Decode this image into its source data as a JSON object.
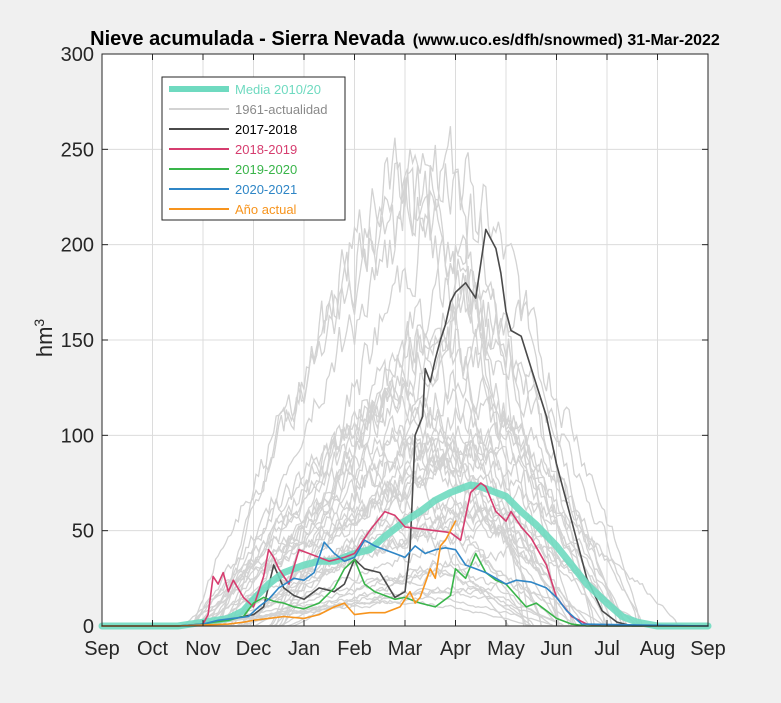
{
  "chart_data": {
    "type": "line",
    "title": "Nieve acumulada - Sierra Nevada",
    "subtitle": "(www.uco.es/dfh/snowmed) 31-Mar-2022",
    "ylabel_base": "hm",
    "ylabel_sup": "3",
    "xlabel": "",
    "ylim": [
      0,
      300
    ],
    "yticks": [
      0,
      50,
      100,
      150,
      200,
      250,
      300
    ],
    "xlim": [
      0,
      12
    ],
    "xticks": [
      "Sep",
      "Oct",
      "Nov",
      "Dec",
      "Jan",
      "Feb",
      "Mar",
      "Apr",
      "May",
      "Jun",
      "Jul",
      "Aug",
      "Sep"
    ],
    "x_unit": "months since 1 Sep",
    "grid": true,
    "legend_position": "top-left",
    "series": [
      {
        "name": "Media 2010/20",
        "color": "#6fdac0",
        "style": "thick",
        "x": [
          0,
          1.5,
          2.0,
          2.5,
          2.8,
          3.0,
          3.3,
          3.6,
          4.0,
          4.3,
          4.6,
          5.0,
          5.3,
          5.6,
          6.0,
          6.3,
          6.6,
          6.9,
          7.1,
          7.3,
          7.5,
          7.7,
          8.0,
          8.3,
          8.6,
          9.0,
          9.3,
          9.6,
          10.0,
          10.3,
          10.6,
          11.0,
          12.0
        ],
        "values": [
          0,
          0,
          2,
          4,
          8,
          14,
          22,
          28,
          32,
          34,
          34,
          38,
          40,
          47,
          55,
          60,
          66,
          70,
          72,
          74,
          73,
          71,
          68,
          60,
          53,
          42,
          32,
          22,
          12,
          5,
          2,
          0,
          0
        ]
      },
      {
        "name": "1961-actualidad",
        "color": "#d3d3d3",
        "style": "background",
        "x": [
          0,
          12
        ],
        "values": [
          0,
          0
        ]
      },
      {
        "name": "2017-2018",
        "color": "#4a4a4a",
        "x": [
          0,
          1.5,
          2.0,
          2.3,
          2.8,
          3.0,
          3.2,
          3.4,
          3.6,
          3.8,
          4.0,
          4.3,
          4.6,
          4.8,
          5.0,
          5.2,
          5.5,
          5.8,
          6.0,
          6.1,
          6.2,
          6.35,
          6.4,
          6.5,
          6.6,
          6.7,
          6.8,
          6.9,
          7.0,
          7.2,
          7.4,
          7.6,
          7.8,
          7.9,
          8.0,
          8.1,
          8.3,
          8.5,
          8.8,
          9.0,
          9.3,
          9.6,
          9.9,
          10.2,
          10.5,
          10.8,
          11.0,
          12.0
        ],
        "values": [
          0,
          0,
          1,
          3,
          5,
          6,
          10,
          32,
          20,
          16,
          14,
          20,
          18,
          22,
          35,
          30,
          28,
          15,
          18,
          40,
          100,
          110,
          135,
          128,
          140,
          150,
          158,
          170,
          175,
          180,
          172,
          208,
          198,
          185,
          165,
          155,
          152,
          135,
          110,
          85,
          55,
          25,
          8,
          2,
          0,
          0,
          0,
          0
        ]
      },
      {
        "name": "2018-2019",
        "color": "#d63d6f",
        "x": [
          0,
          1.5,
          2.0,
          2.1,
          2.2,
          2.3,
          2.4,
          2.5,
          2.6,
          2.8,
          3.0,
          3.2,
          3.3,
          3.4,
          3.5,
          3.7,
          3.9,
          4.1,
          4.3,
          4.5,
          4.8,
          5.0,
          5.3,
          5.6,
          5.8,
          6.0,
          6.3,
          6.6,
          6.9,
          7.1,
          7.3,
          7.5,
          7.6,
          7.8,
          8.0,
          8.1,
          8.3,
          8.5,
          8.8,
          9.0,
          9.3,
          9.6,
          9.9,
          10.2,
          12.0
        ],
        "values": [
          0,
          0,
          1,
          6,
          26,
          22,
          28,
          18,
          24,
          15,
          10,
          26,
          40,
          36,
          30,
          22,
          40,
          38,
          36,
          34,
          36,
          38,
          50,
          60,
          58,
          52,
          51,
          50,
          49,
          45,
          70,
          75,
          73,
          60,
          55,
          60,
          52,
          46,
          32,
          15,
          5,
          1,
          0,
          0,
          0
        ]
      },
      {
        "name": "2019-2020",
        "color": "#39b54a",
        "x": [
          0,
          1.5,
          2.0,
          2.2,
          2.5,
          2.8,
          3.0,
          3.2,
          3.4,
          3.6,
          3.8,
          4.0,
          4.3,
          4.6,
          4.8,
          5.0,
          5.2,
          5.4,
          5.6,
          5.8,
          6.0,
          6.3,
          6.6,
          6.9,
          7.0,
          7.2,
          7.4,
          7.6,
          7.8,
          8.0,
          8.2,
          8.4,
          8.6,
          8.8,
          9.0,
          9.3,
          9.6,
          12.0
        ],
        "values": [
          0,
          0,
          1,
          2,
          3,
          5,
          12,
          15,
          13,
          12,
          10,
          9,
          12,
          20,
          30,
          35,
          22,
          18,
          16,
          14,
          15,
          12,
          10,
          16,
          30,
          25,
          38,
          28,
          24,
          22,
          16,
          10,
          12,
          8,
          4,
          1,
          0,
          0
        ]
      },
      {
        "name": "2020-2021",
        "color": "#2f86c6",
        "x": [
          0,
          1.5,
          2.0,
          2.3,
          2.6,
          2.9,
          3.1,
          3.3,
          3.5,
          3.8,
          4.0,
          4.2,
          4.4,
          4.6,
          4.8,
          5.0,
          5.2,
          5.4,
          5.6,
          5.8,
          6.0,
          6.2,
          6.4,
          6.6,
          6.8,
          7.0,
          7.2,
          7.4,
          7.6,
          7.8,
          8.0,
          8.2,
          8.5,
          8.8,
          9.0,
          9.2,
          9.5,
          12.0
        ],
        "values": [
          0,
          0,
          1,
          3,
          4,
          5,
          10,
          14,
          20,
          25,
          24,
          28,
          44,
          38,
          34,
          36,
          45,
          42,
          40,
          38,
          36,
          42,
          38,
          40,
          41,
          40,
          32,
          30,
          28,
          25,
          22,
          24,
          23,
          20,
          15,
          8,
          1,
          0
        ]
      },
      {
        "name": "Año actual",
        "color": "#f7941d",
        "x": [
          0,
          1.5,
          2.0,
          2.5,
          2.8,
          3.0,
          3.3,
          3.6,
          4.0,
          4.3,
          4.6,
          4.8,
          5.0,
          5.3,
          5.6,
          5.9,
          6.1,
          6.2,
          6.3,
          6.5,
          6.6,
          6.7,
          6.8,
          6.9,
          7.0
        ],
        "values": [
          0,
          0,
          0.5,
          1,
          2,
          3,
          4,
          5,
          4,
          6,
          10,
          12,
          6,
          7,
          7,
          10,
          18,
          12,
          15,
          30,
          25,
          42,
          45,
          50,
          55
        ]
      }
    ]
  }
}
